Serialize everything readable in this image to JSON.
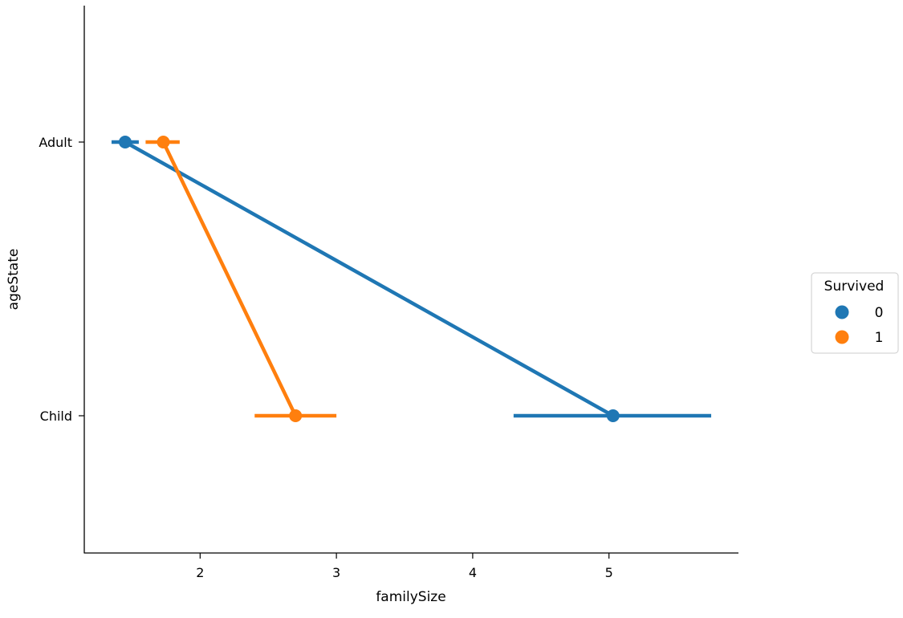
{
  "chart_data": {
    "type": "pointplot",
    "title": "",
    "xlabel": "familySize",
    "ylabel": "ageState",
    "xlim": [
      1.15,
      5.95
    ],
    "x_ticks": [
      2,
      3,
      4,
      5
    ],
    "categories": [
      "Adult",
      "Child"
    ],
    "grid": false,
    "legend": {
      "title": "Survived",
      "placement": "right"
    },
    "series": [
      {
        "name": "0",
        "color": "#1f77b4",
        "values": [
          1.45,
          5.03
        ],
        "ci_low": [
          1.35,
          4.3
        ],
        "ci_high": [
          1.55,
          5.75
        ]
      },
      {
        "name": "1",
        "color": "#ff7f0e",
        "values": [
          1.73,
          2.7
        ],
        "ci_low": [
          1.6,
          2.4
        ],
        "ci_high": [
          1.85,
          3.0
        ]
      }
    ]
  }
}
